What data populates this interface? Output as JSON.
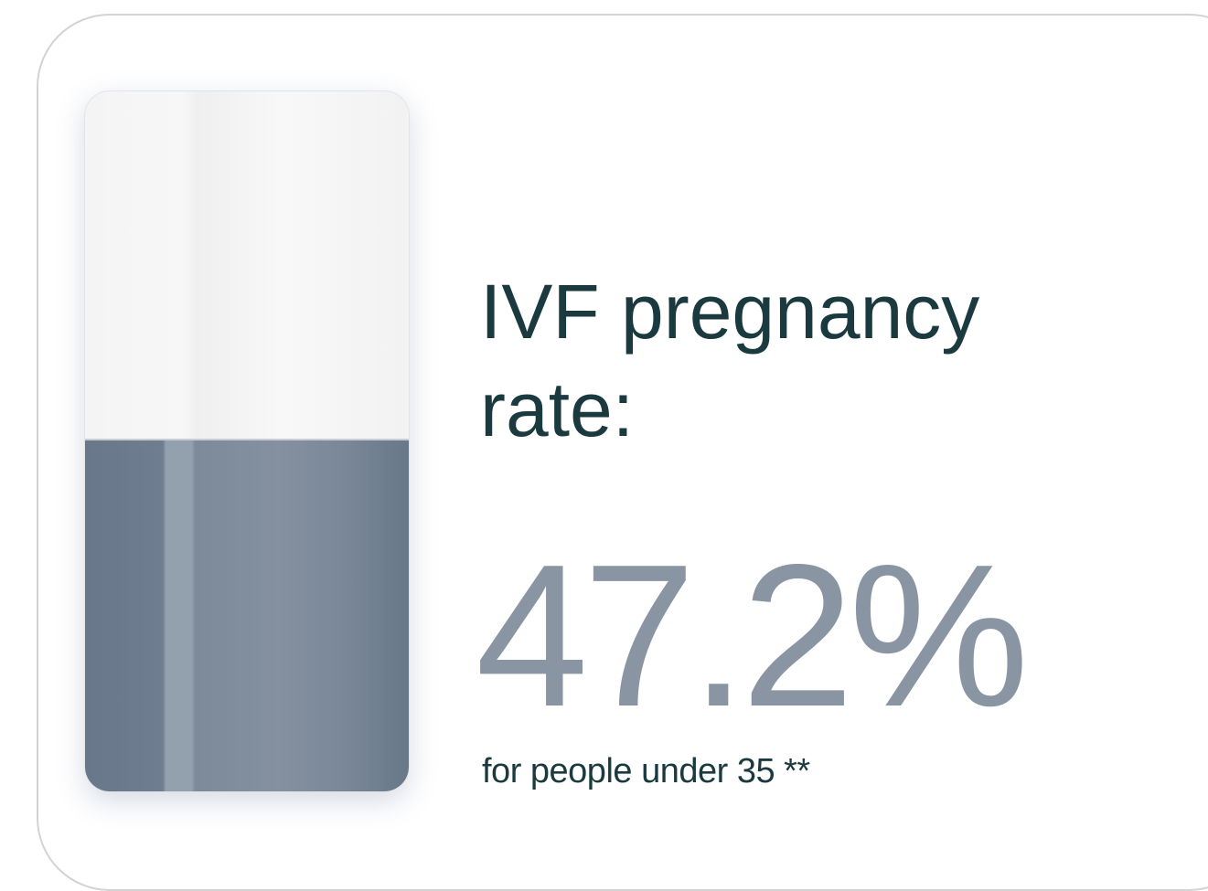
{
  "card": {
    "title": "IVF pregnancy rate:",
    "value_label": "47.2%",
    "note": "for people under 35 **"
  }
}
